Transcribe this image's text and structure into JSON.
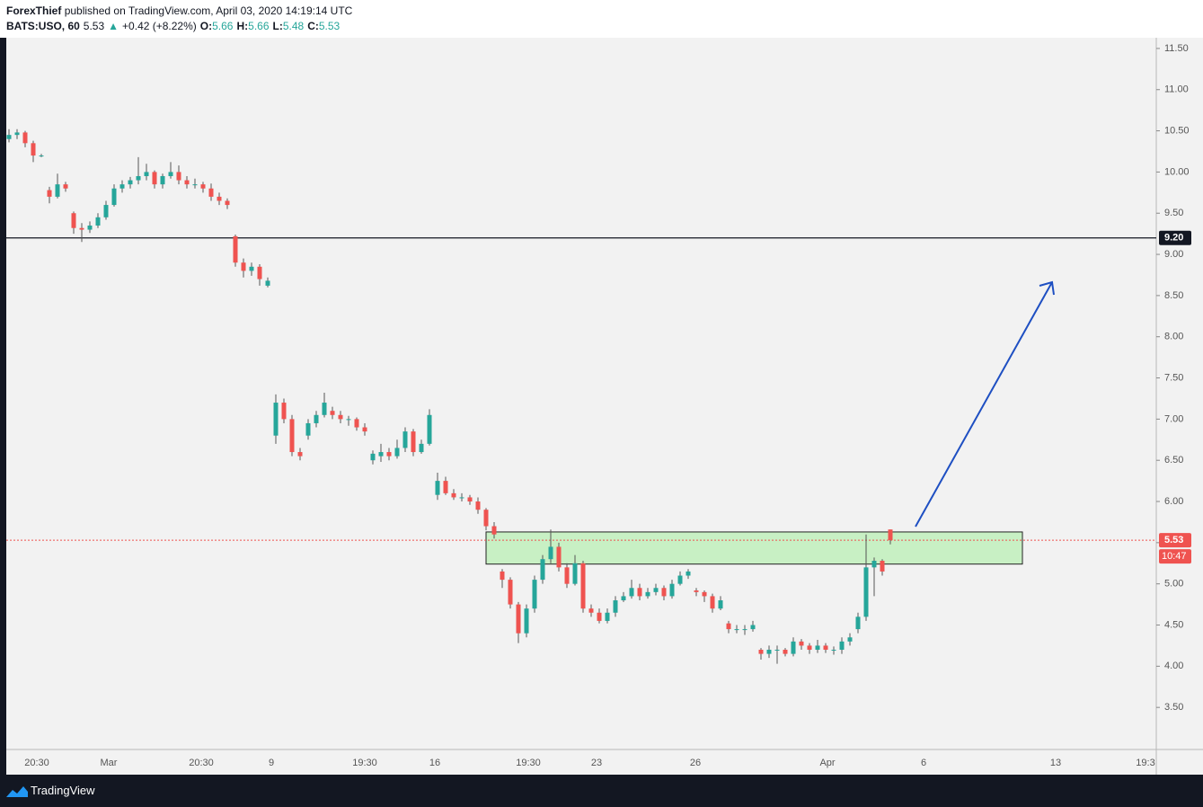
{
  "header": {
    "publisher": "ForexThief",
    "published": "published on TradingView.com, April 03, 2020 14:19:14 UTC",
    "symbol": "BATS:USO, 60",
    "last": "5.53",
    "arrow": "▲",
    "change": "+0.42 (+8.22%)",
    "o_label": "O:",
    "o": "5.66",
    "h_label": "H:",
    "h": "5.66",
    "l_label": "L:",
    "l": "5.48",
    "c_label": "C:",
    "c": "5.53"
  },
  "chart_data": {
    "type": "candlestick",
    "up_color": "#26a69a",
    "down_color": "#ef5350",
    "ylim": [
      3.0,
      11.63
    ],
    "yticks": [
      {
        "value": 3.5,
        "label": "3.50"
      },
      {
        "value": 4,
        "label": "4.00"
      },
      {
        "value": 4.5,
        "label": "4.50"
      },
      {
        "value": 5,
        "label": "5.00"
      },
      {
        "value": 5.5,
        "label": "5.50"
      },
      {
        "value": 6,
        "label": "6.00"
      },
      {
        "value": 6.5,
        "label": "6.50"
      },
      {
        "value": 7,
        "label": "7.00"
      },
      {
        "value": 7.5,
        "label": "7.50"
      },
      {
        "value": 8,
        "label": "8.00"
      },
      {
        "value": 8.5,
        "label": "8.50"
      },
      {
        "value": 9,
        "label": "9.00"
      },
      {
        "value": 9.5,
        "label": "9.50"
      },
      {
        "value": 10,
        "label": "10.00"
      },
      {
        "value": 10.5,
        "label": "10.50"
      },
      {
        "value": 11,
        "label": "11.00"
      },
      {
        "value": 11.5,
        "label": "11.50"
      }
    ],
    "xticks": [
      "20:30",
      "Mar",
      "20:30",
      "9",
      "19:30",
      "16",
      "19:30",
      "23",
      "26",
      "Apr",
      "6",
      "13",
      "19:3"
    ],
    "ohlc": [
      [
        10.4,
        10.52,
        10.36,
        10.45
      ],
      [
        10.45,
        10.52,
        10.4,
        10.48
      ],
      [
        10.48,
        10.5,
        10.3,
        10.35
      ],
      [
        10.35,
        10.38,
        10.12,
        10.2
      ],
      [
        10.2,
        10.22,
        10.18,
        10.2
      ],
      [
        9.78,
        9.82,
        9.62,
        9.7
      ],
      [
        9.7,
        9.98,
        9.68,
        9.85
      ],
      [
        9.85,
        9.88,
        9.76,
        9.8
      ],
      [
        9.5,
        9.52,
        9.25,
        9.32
      ],
      [
        9.32,
        9.38,
        9.15,
        9.3
      ],
      [
        9.3,
        9.4,
        9.26,
        9.35
      ],
      [
        9.35,
        9.5,
        9.32,
        9.45
      ],
      [
        9.45,
        9.65,
        9.42,
        9.6
      ],
      [
        9.6,
        9.85,
        9.58,
        9.8
      ],
      [
        9.8,
        9.9,
        9.75,
        9.85
      ],
      [
        9.85,
        9.94,
        9.8,
        9.9
      ],
      [
        9.9,
        10.18,
        9.85,
        9.95
      ],
      [
        9.95,
        10.1,
        9.9,
        10.0
      ],
      [
        10.0,
        10.02,
        9.8,
        9.85
      ],
      [
        9.85,
        9.98,
        9.8,
        9.95
      ],
      [
        9.95,
        10.12,
        9.92,
        10.0
      ],
      [
        10.0,
        10.08,
        9.85,
        9.9
      ],
      [
        9.9,
        9.95,
        9.8,
        9.85
      ],
      [
        9.85,
        9.92,
        9.8,
        9.85
      ],
      [
        9.85,
        9.88,
        9.75,
        9.8
      ],
      [
        9.8,
        9.86,
        9.65,
        9.7
      ],
      [
        9.7,
        9.75,
        9.6,
        9.65
      ],
      [
        9.65,
        9.68,
        9.55,
        9.6
      ],
      [
        9.22,
        9.24,
        8.85,
        8.9
      ],
      [
        8.9,
        8.95,
        8.72,
        8.8
      ],
      [
        8.8,
        8.9,
        8.74,
        8.85
      ],
      [
        8.85,
        8.88,
        8.62,
        8.7
      ],
      [
        8.62,
        8.72,
        8.6,
        8.68
      ],
      [
        6.8,
        7.3,
        6.7,
        7.2
      ],
      [
        7.2,
        7.25,
        6.95,
        7.0
      ],
      [
        7.0,
        7.05,
        6.55,
        6.6
      ],
      [
        6.6,
        6.65,
        6.5,
        6.55
      ],
      [
        6.8,
        7.0,
        6.75,
        6.95
      ],
      [
        6.95,
        7.1,
        6.9,
        7.05
      ],
      [
        7.05,
        7.32,
        7.02,
        7.2
      ],
      [
        7.1,
        7.15,
        7.0,
        7.05
      ],
      [
        7.05,
        7.1,
        6.95,
        7.0
      ],
      [
        7.0,
        7.04,
        6.92,
        7.0
      ],
      [
        7.0,
        7.02,
        6.86,
        6.9
      ],
      [
        6.9,
        6.95,
        6.8,
        6.85
      ],
      [
        6.5,
        6.62,
        6.45,
        6.58
      ],
      [
        6.55,
        6.7,
        6.48,
        6.6
      ],
      [
        6.6,
        6.65,
        6.5,
        6.55
      ],
      [
        6.55,
        6.75,
        6.52,
        6.65
      ],
      [
        6.65,
        6.9,
        6.6,
        6.85
      ],
      [
        6.85,
        6.88,
        6.55,
        6.6
      ],
      [
        6.6,
        6.75,
        6.58,
        6.7
      ],
      [
        6.7,
        7.12,
        6.68,
        7.05
      ],
      [
        6.08,
        6.35,
        6.02,
        6.25
      ],
      [
        6.25,
        6.3,
        6.08,
        6.1
      ],
      [
        6.1,
        6.15,
        6.02,
        6.05
      ],
      [
        6.05,
        6.1,
        6.0,
        6.05
      ],
      [
        6.05,
        6.08,
        5.96,
        6.0
      ],
      [
        6.0,
        6.05,
        5.85,
        5.9
      ],
      [
        5.9,
        5.92,
        5.65,
        5.7
      ],
      [
        5.7,
        5.75,
        5.55,
        5.6
      ],
      [
        5.15,
        5.18,
        4.95,
        5.05
      ],
      [
        5.05,
        5.08,
        4.7,
        4.75
      ],
      [
        4.75,
        4.78,
        4.28,
        4.4
      ],
      [
        4.4,
        4.75,
        4.35,
        4.7
      ],
      [
        4.7,
        5.1,
        4.65,
        5.05
      ],
      [
        5.05,
        5.35,
        5.0,
        5.3
      ],
      [
        5.3,
        5.66,
        5.25,
        5.45
      ],
      [
        5.45,
        5.5,
        5.15,
        5.2
      ],
      [
        5.2,
        5.25,
        4.95,
        5.0
      ],
      [
        5.0,
        5.35,
        4.98,
        5.25
      ],
      [
        5.25,
        5.28,
        4.65,
        4.7
      ],
      [
        4.7,
        4.75,
        4.6,
        4.65
      ],
      [
        4.65,
        4.7,
        4.52,
        4.55
      ],
      [
        4.55,
        4.7,
        4.52,
        4.65
      ],
      [
        4.65,
        4.85,
        4.6,
        4.8
      ],
      [
        4.8,
        4.9,
        4.78,
        4.85
      ],
      [
        4.85,
        5.05,
        4.82,
        4.95
      ],
      [
        4.95,
        5.0,
        4.8,
        4.85
      ],
      [
        4.85,
        4.95,
        4.82,
        4.9
      ],
      [
        4.9,
        5.0,
        4.86,
        4.95
      ],
      [
        4.95,
        4.98,
        4.8,
        4.85
      ],
      [
        4.85,
        5.05,
        4.82,
        5.0
      ],
      [
        5.0,
        5.15,
        4.98,
        5.1
      ],
      [
        5.1,
        5.18,
        5.06,
        5.15
      ],
      [
        4.92,
        4.95,
        4.85,
        4.9
      ],
      [
        4.9,
        4.92,
        4.78,
        4.85
      ],
      [
        4.85,
        4.88,
        4.65,
        4.7
      ],
      [
        4.7,
        4.85,
        4.68,
        4.8
      ],
      [
        4.52,
        4.55,
        4.4,
        4.45
      ],
      [
        4.45,
        4.5,
        4.4,
        4.45
      ],
      [
        4.45,
        4.5,
        4.38,
        4.45
      ],
      [
        4.45,
        4.55,
        4.42,
        4.5
      ],
      [
        4.2,
        4.22,
        4.08,
        4.15
      ],
      [
        4.15,
        4.25,
        4.1,
        4.2
      ],
      [
        4.2,
        4.25,
        4.03,
        4.2
      ],
      [
        4.2,
        4.22,
        4.12,
        4.15
      ],
      [
        4.15,
        4.35,
        4.12,
        4.3
      ],
      [
        4.3,
        4.33,
        4.2,
        4.25
      ],
      [
        4.25,
        4.28,
        4.15,
        4.2
      ],
      [
        4.2,
        4.32,
        4.16,
        4.25
      ],
      [
        4.25,
        4.28,
        4.16,
        4.2
      ],
      [
        4.2,
        4.24,
        4.14,
        4.2
      ],
      [
        4.2,
        4.35,
        4.15,
        4.3
      ],
      [
        4.3,
        4.4,
        4.25,
        4.35
      ],
      [
        4.45,
        4.65,
        4.4,
        4.6
      ],
      [
        4.6,
        5.6,
        4.55,
        5.2
      ],
      [
        5.2,
        5.32,
        4.85,
        5.28
      ],
      [
        5.28,
        5.3,
        5.1,
        5.15
      ],
      [
        5.66,
        5.66,
        5.48,
        5.53
      ]
    ],
    "hline": {
      "value": 9.2,
      "label": "9.20"
    },
    "last_price": {
      "value": 5.53,
      "label": "5.53",
      "countdown": "10:47"
    },
    "zone": {
      "top": 5.63,
      "bottom": 5.24
    }
  },
  "footer": {
    "brand": "TradingView"
  }
}
